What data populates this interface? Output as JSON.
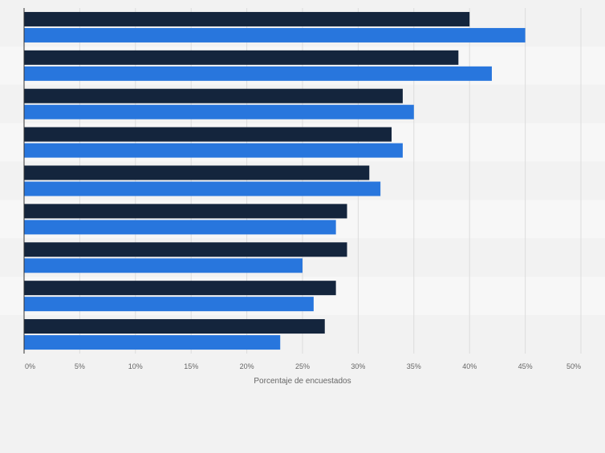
{
  "chart_data": {
    "type": "bar",
    "orientation": "horizontal",
    "xlabel": "Porcentaje de encuestados",
    "ylabel": "",
    "xlim": [
      0,
      50
    ],
    "tick_values": [
      0,
      5,
      10,
      15,
      20,
      25,
      30,
      35,
      40,
      45,
      50
    ],
    "tick_labels": [
      "0%",
      "5%",
      "10%",
      "15%",
      "20%",
      "25%",
      "30%",
      "35%",
      "40%",
      "45%",
      "50%"
    ],
    "categories": [
      "",
      "",
      "",
      "",
      "",
      "",
      "",
      "",
      ""
    ],
    "series": [
      {
        "name": "",
        "color": "#14253d",
        "values": [
          40,
          39,
          34,
          33,
          31,
          29,
          29,
          28,
          27
        ]
      },
      {
        "name": "",
        "color": "#2876dd",
        "values": [
          45,
          42,
          35,
          34,
          32,
          28,
          25,
          26,
          23
        ]
      }
    ],
    "grid": true,
    "legend": "none"
  },
  "colors": {
    "background": "#f2f2f2",
    "band_even": "#f2f2f2",
    "band_odd": "#f7f7f7",
    "gridline": "#dcdcdc",
    "axis": "#333333",
    "tick_text": "#666666"
  }
}
